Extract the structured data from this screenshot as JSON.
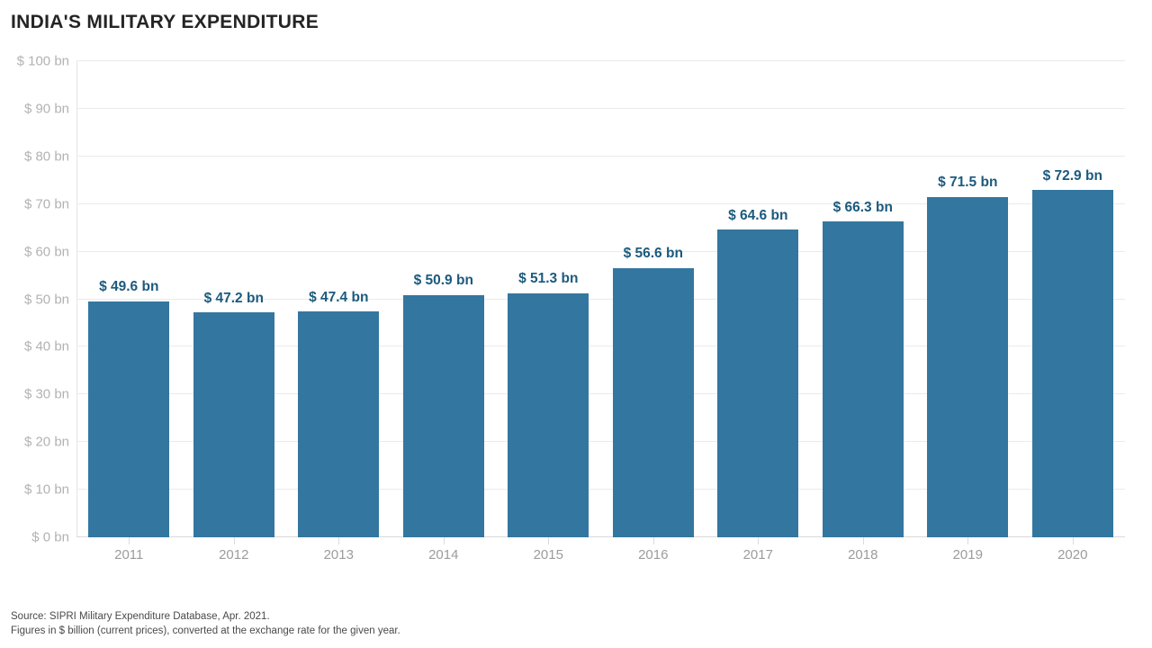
{
  "chart_data": {
    "type": "bar",
    "title": "INDIA'S MILITARY EXPENDITURE",
    "categories": [
      "2011",
      "2012",
      "2013",
      "2014",
      "2015",
      "2016",
      "2017",
      "2018",
      "2019",
      "2020"
    ],
    "values": [
      49.6,
      47.2,
      47.4,
      50.9,
      51.3,
      56.6,
      64.6,
      66.3,
      71.5,
      72.9
    ],
    "bar_labels": [
      "$ 49.6 bn",
      "$ 47.2 bn",
      "$ 47.4 bn",
      "$ 50.9 bn",
      "$ 51.3 bn",
      "$ 56.6 bn",
      "$ 64.6 bn",
      "$ 66.3 bn",
      "$ 71.5 bn",
      "$ 72.9 bn"
    ],
    "xlabel": "",
    "ylabel": "",
    "ylim": [
      0,
      100
    ],
    "ytick_step": 10,
    "ytick_labels": [
      "$ 0 bn",
      "$ 10 bn",
      "$ 20 bn",
      "$ 30 bn",
      "$ 40 bn",
      "$ 50 bn",
      "$ 60 bn",
      "$ 70 bn",
      "$ 80 bn",
      "$ 90 bn",
      "$ 100 bn"
    ],
    "grid": true,
    "legend": "none",
    "bar_color": "#3377A0",
    "value_label_color": "#1B5A7D"
  },
  "footer": {
    "source_line1": "Source: SIPRI Military Expenditure Database, Apr. 2021.",
    "source_line2": "Figures in $ billion (current prices), converted at the exchange rate for the given year."
  }
}
